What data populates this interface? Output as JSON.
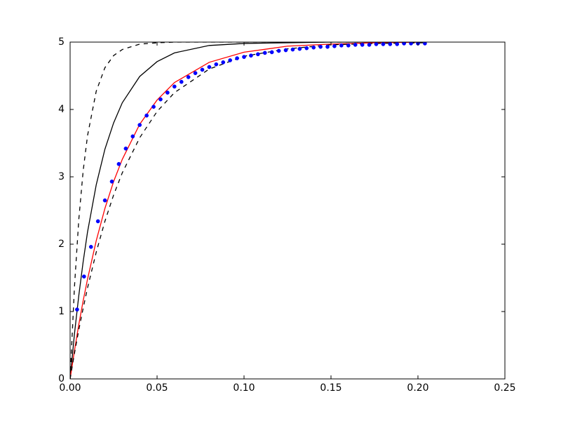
{
  "chart_data": {
    "type": "line",
    "xlim": [
      0,
      0.25
    ],
    "ylim": [
      0,
      5
    ],
    "xticks": [
      {
        "value": 0,
        "label": "0.00"
      },
      {
        "value": 0.05,
        "label": "0.05"
      },
      {
        "value": 0.1,
        "label": "0.10"
      },
      {
        "value": 0.15,
        "label": "0.15"
      },
      {
        "value": 0.2,
        "label": "0.20"
      },
      {
        "value": 0.25,
        "label": "0.25"
      }
    ],
    "yticks": [
      0,
      1,
      2,
      3,
      4,
      5
    ],
    "series": [
      {
        "color": "#000000",
        "style": "dashed",
        "x": [
          0,
          0.0025,
          0.005,
          0.0075,
          0.01,
          0.015,
          0.02,
          0.025,
          0.03,
          0.04,
          0.05,
          0.06,
          0.08,
          0.1,
          0.125,
          0.15,
          0.175,
          0.205
        ],
        "values": [
          0,
          1.37,
          2.37,
          3.09,
          3.61,
          4.27,
          4.62,
          4.8,
          4.89,
          4.97,
          4.99,
          5,
          5,
          5,
          5,
          5,
          5,
          5
        ]
      },
      {
        "color": "#000000",
        "style": "solid",
        "x": [
          0,
          0.0025,
          0.005,
          0.0075,
          0.01,
          0.015,
          0.02,
          0.025,
          0.03,
          0.04,
          0.05,
          0.06,
          0.08,
          0.1,
          0.125,
          0.15,
          0.175,
          0.205
        ],
        "values": [
          0,
          0.67,
          1.24,
          1.74,
          2.18,
          2.88,
          3.41,
          3.8,
          4.1,
          4.49,
          4.71,
          4.84,
          4.95,
          4.98,
          4.99,
          5,
          5,
          5
        ]
      },
      {
        "color": "#ff0000",
        "style": "solid",
        "x": [
          0,
          0.0025,
          0.005,
          0.0075,
          0.01,
          0.015,
          0.02,
          0.025,
          0.03,
          0.04,
          0.05,
          0.06,
          0.08,
          0.1,
          0.125,
          0.15,
          0.175,
          0.205
        ],
        "values": [
          0,
          0.42,
          0.81,
          1.16,
          1.48,
          2.05,
          2.53,
          2.93,
          3.26,
          3.78,
          4.14,
          4.4,
          4.7,
          4.85,
          4.94,
          4.97,
          4.99,
          5
        ]
      },
      {
        "color": "#000000",
        "style": "dashed",
        "x": [
          0,
          0.0025,
          0.005,
          0.0075,
          0.01,
          0.015,
          0.02,
          0.025,
          0.03,
          0.04,
          0.05,
          0.06,
          0.08,
          0.1,
          0.125,
          0.15,
          0.175,
          0.205
        ],
        "values": [
          0,
          0.38,
          0.73,
          1.05,
          1.35,
          1.88,
          2.34,
          2.73,
          3.06,
          3.58,
          3.97,
          4.25,
          4.6,
          4.79,
          4.9,
          4.96,
          4.98,
          4.99
        ]
      },
      {
        "color": "#0000ff",
        "style": "dots",
        "x": [
          0.004,
          0.008,
          0.012,
          0.016,
          0.02,
          0.024,
          0.028,
          0.032,
          0.036,
          0.04,
          0.044,
          0.048,
          0.052,
          0.056,
          0.06,
          0.064,
          0.068,
          0.072,
          0.076,
          0.08,
          0.084,
          0.088,
          0.092,
          0.096,
          0.1,
          0.104,
          0.108,
          0.112,
          0.116,
          0.12,
          0.124,
          0.128,
          0.132,
          0.136,
          0.14,
          0.144,
          0.148,
          0.152,
          0.156,
          0.16,
          0.164,
          0.168,
          0.172,
          0.176,
          0.18,
          0.184,
          0.188,
          0.192,
          0.196,
          0.2,
          0.204
        ],
        "values": [
          1.03,
          1.52,
          1.96,
          2.34,
          2.65,
          2.93,
          3.19,
          3.42,
          3.6,
          3.77,
          3.91,
          4.04,
          4.15,
          4.25,
          4.34,
          4.41,
          4.48,
          4.54,
          4.59,
          4.63,
          4.67,
          4.7,
          4.73,
          4.76,
          4.78,
          4.8,
          4.82,
          4.84,
          4.85,
          4.87,
          4.88,
          4.89,
          4.9,
          4.91,
          4.92,
          4.93,
          4.93,
          4.94,
          4.95,
          4.95,
          4.96,
          4.96,
          4.96,
          4.97,
          4.97,
          4.97,
          4.97,
          4.98,
          4.98,
          4.98,
          4.98
        ]
      }
    ]
  }
}
